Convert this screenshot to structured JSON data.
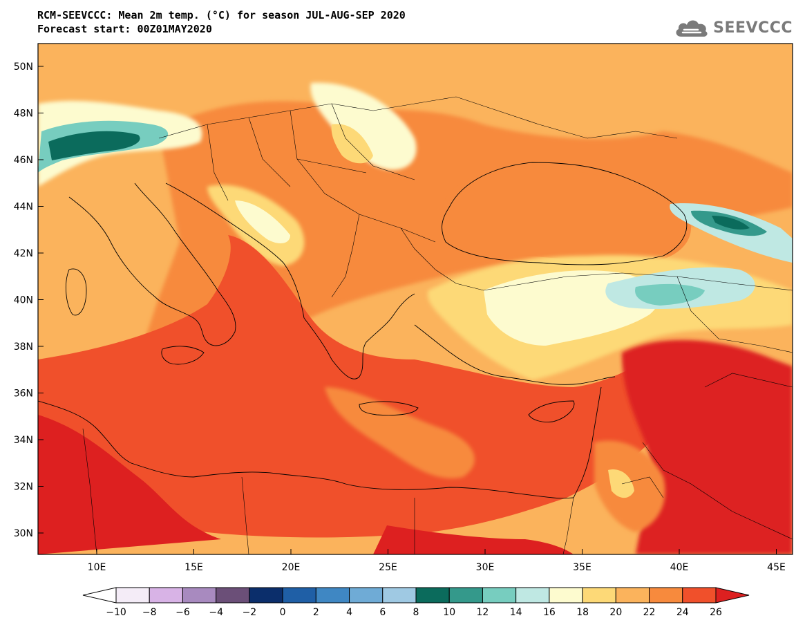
{
  "header": {
    "title_line1": "RCM-SEEVCCC: Mean 2m temp. (°C) for season JUL-AUG-SEP 2020",
    "title_line2": "Forecast start: 00Z01MAY2020"
  },
  "logo": {
    "text": "SEEVCCC",
    "icon": "cloud-icon"
  },
  "axes": {
    "lat_labels": [
      "50N",
      "48N",
      "46N",
      "44N",
      "42N",
      "40N",
      "38N",
      "36N",
      "34N",
      "32N",
      "30N"
    ],
    "lon_labels": [
      "10E",
      "15E",
      "20E",
      "25E",
      "30E",
      "35E",
      "40E",
      "45E"
    ]
  },
  "colorbar": {
    "tick_labels": [
      "-10",
      "-8",
      "-6",
      "-4",
      "-2",
      "0",
      "2",
      "4",
      "6",
      "8",
      "10",
      "12",
      "14",
      "16",
      "18",
      "20",
      "22",
      "24",
      "26"
    ],
    "under_color": "#ffffff",
    "colors": [
      "#f4ecf7",
      "#d8b3e6",
      "#a88abf",
      "#6b4f78",
      "#0b2e6b",
      "#1f5fa6",
      "#3f87c3",
      "#6fabd6",
      "#9fc9e3",
      "#0b6b5c",
      "#34998b",
      "#77cdbf",
      "#bfe8e3",
      "#fdfbcf",
      "#fdd977",
      "#fbb35c",
      "#f78a3d",
      "#f0502b"
    ],
    "over_color": "#dd2020"
  },
  "palette": {
    "land_bg": "#fbb35c",
    "sea_hot": "#f0502b",
    "very_hot": "#dd2020",
    "warm": "#f78a3d",
    "mild": "#fdd977",
    "cool": "#fdfbcf",
    "cold_mid": "#bfe8e3",
    "cold": "#77cdbf",
    "colder": "#34998b",
    "coldest": "#0b6b5c",
    "border_line": "#000000"
  }
}
